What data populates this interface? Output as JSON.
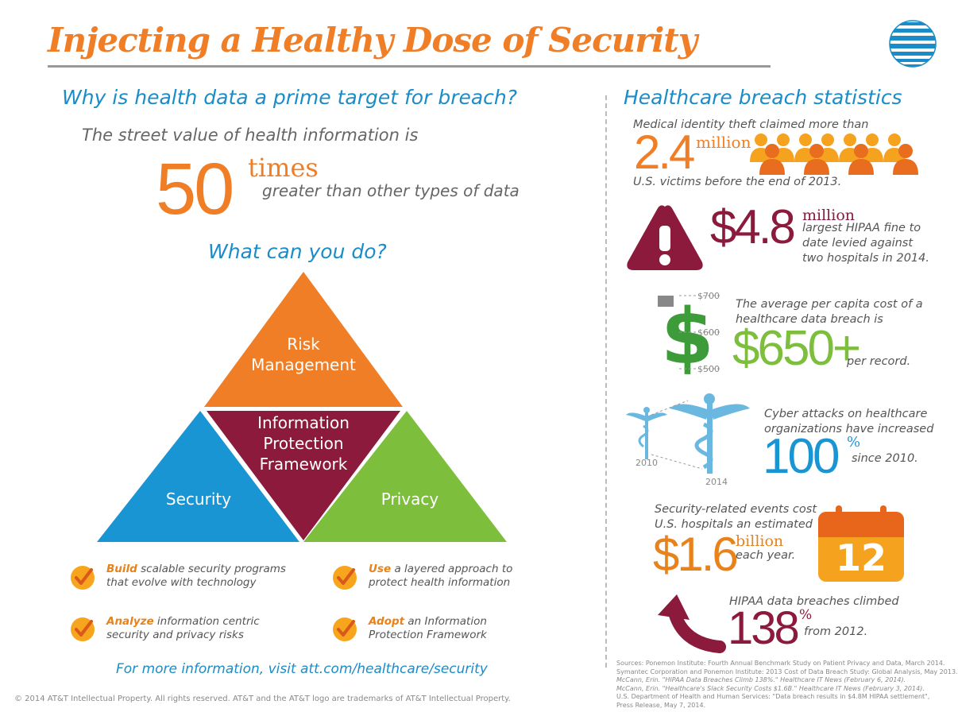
{
  "title": "Injecting a Healthy Dose of Security",
  "left": {
    "heading": "Why is health data a prime target for breach?",
    "street_value_line": "The street value of health information is",
    "big_number": "50",
    "times_word": "times",
    "greater_line": "greater than other types of data",
    "what_heading": "What can you do?",
    "pyramid": {
      "top_line1": "Risk",
      "top_line2": "Management",
      "center_line1": "Information",
      "center_line2": "Protection",
      "center_line3": "Framework",
      "left": "Security",
      "right": "Privacy"
    },
    "tasks": [
      {
        "verb": "Build",
        "rest1": "scalable security programs",
        "rest2": "that evolve with technology"
      },
      {
        "verb": "Use",
        "rest1": "a layered approach to",
        "rest2": "protect health information"
      },
      {
        "verb": "Analyze",
        "rest1": "information centric",
        "rest2": "security and privacy risks"
      },
      {
        "verb": "Adopt",
        "rest1": "an Information",
        "rest2": "Protection Framework"
      }
    ],
    "more_info": "For more information, visit att.com/healthcare/security"
  },
  "right": {
    "heading": "Healthcare breach statistics",
    "stat1": {
      "intro": "Medical identity theft claimed more than",
      "number": "2.4",
      "unit": "million",
      "outro": "U.S. victims before the end of 2013."
    },
    "stat2": {
      "number": "$4.8",
      "unit": "million",
      "line1": "largest HIPAA fine to",
      "line2": "date levied against",
      "line3": "two hospitals in 2014."
    },
    "stat3": {
      "axis_top": "$700",
      "axis_mid": "$600",
      "axis_bot": "$500",
      "line1": "The average per capita cost of a",
      "line2": "healthcare data breach is",
      "number": "$650+",
      "outro": "per record."
    },
    "stat4": {
      "year1": "2010",
      "year2": "2014",
      "line1": "Cyber attacks on healthcare",
      "line2": "organizations have increased",
      "number": "100",
      "percent": "%",
      "outro": "since 2010."
    },
    "stat5": {
      "line1": "Security-related events cost",
      "line2": "U.S. hospitals an estimated",
      "number": "$1.6",
      "unit": "billion",
      "outro": "each year.",
      "calendar_day": "12"
    },
    "stat6": {
      "intro": "HIPAA data breaches climbed",
      "number": "138",
      "percent": "%",
      "outro": "from 2012."
    },
    "sources": [
      "Sources:  Ponemon Institute: Fourth Annual Benchmark Study on Patient Privacy and Data, March 2014.",
      "Symantec Corporation and Ponemon Institute: 2013 Cost of Data Breach Study: Global Analysis, May 2013.",
      "McCann, Erin. \"HIPAA Data Breaches Climb 138%.\" Healthcare IT News (February 6, 2014).",
      "McCann, Erin. \"Healthcare's Slack Security Costs $1.6B.\" Healthcare IT News (February 3, 2014).",
      "U.S. Department of Health and Human Services: \"Data breach results in $4.8M HIPAA settlement\",",
      "Press Release, May 7, 2014."
    ]
  },
  "footer": "© 2014 AT&T Intellectual Property.  All rights reserved. AT&T and the AT&T logo are trademarks of AT&T Intellectual Property.",
  "colors": {
    "orange": "#f07e26",
    "blue": "#1a8cc8",
    "green": "#7dbf3c",
    "maroon": "#8b1a3c"
  }
}
